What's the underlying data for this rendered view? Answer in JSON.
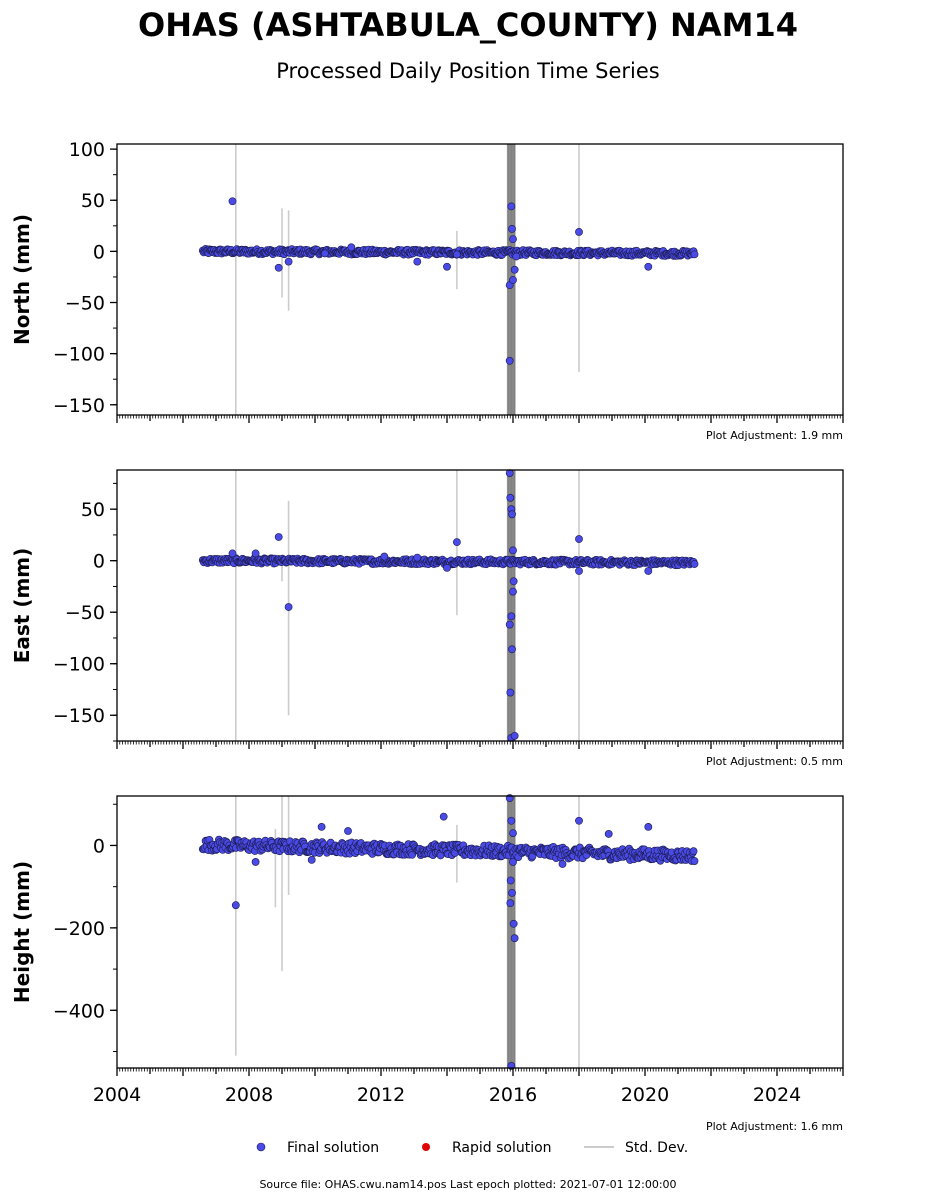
{
  "title": "OHAS (ASHTABULA_COUNTY) NAM14",
  "subtitle": "Processed Daily Position Time Series",
  "footer": "Source file: OHAS.cwu.nam14.pos  Last epoch plotted: 2021-07-01 12:00:00",
  "legend": [
    {
      "label": "Final solution",
      "color": "#4a4ae6",
      "marker": "circle"
    },
    {
      "label": "Rapid solution",
      "color": "#e00000",
      "marker": "circle"
    },
    {
      "label": "Std. Dev.",
      "color": "#cccccc",
      "marker": "line"
    }
  ],
  "colors": {
    "final": "#4a4ae6",
    "final_edge": "#1a1a4a",
    "stddev": "#cccccc",
    "stddev_dark": "#555555"
  },
  "chart_data": [
    {
      "type": "scatter",
      "ylabel": "North (mm)",
      "adjustment": "Plot Adjustment: 1.9 mm",
      "xlim": [
        2004,
        2026
      ],
      "ylim": [
        -160,
        105
      ],
      "yticks": [
        100,
        50,
        0,
        -50,
        -100,
        -150
      ],
      "xticks": [],
      "grid": false,
      "series": [
        {
          "name": "Final solution",
          "points": [
            [
              2007.5,
              49
            ],
            [
              2008.9,
              -16
            ],
            [
              2009.2,
              -10
            ],
            [
              2010.3,
              -2
            ],
            [
              2011.1,
              4
            ],
            [
              2013.1,
              -10
            ],
            [
              2014.0,
              -15
            ],
            [
              2014.3,
              -3
            ],
            [
              2015.9,
              -107
            ],
            [
              2015.95,
              44
            ],
            [
              2015.97,
              22
            ],
            [
              2015.9,
              -33
            ],
            [
              2016.0,
              12
            ],
            [
              2016.05,
              -18
            ],
            [
              2016.0,
              -28
            ],
            [
              2016.1,
              -5
            ],
            [
              2018.0,
              19
            ],
            [
              2020.1,
              -15
            ]
          ],
          "trend": {
            "start": 2006.6,
            "end": 2021.5,
            "y_start": 0,
            "y_end": -2,
            "spread": 2.5
          }
        }
      ],
      "stddev_bars": [
        [
          2007.6,
          -160,
          105
        ],
        [
          2009.0,
          -45,
          42
        ],
        [
          2009.2,
          -58,
          40
        ],
        [
          2014.3,
          -37,
          20
        ],
        [
          2018.0,
          -118,
          105
        ]
      ],
      "dense_stddev_at": 2015.95
    },
    {
      "type": "scatter",
      "ylabel": "East (mm)",
      "adjustment": "Plot Adjustment: 0.5 mm",
      "xlim": [
        2004,
        2026
      ],
      "ylim": [
        -175,
        88
      ],
      "yticks": [
        50,
        0,
        -50,
        -100,
        -150
      ],
      "xticks": [],
      "grid": false,
      "series": [
        {
          "name": "Final solution",
          "points": [
            [
              2007.5,
              7
            ],
            [
              2008.2,
              7
            ],
            [
              2008.9,
              23
            ],
            [
              2009.2,
              -45
            ],
            [
              2012.1,
              4
            ],
            [
              2013.1,
              3
            ],
            [
              2014.0,
              -7
            ],
            [
              2014.3,
              18
            ],
            [
              2015.9,
              85
            ],
            [
              2015.92,
              61
            ],
            [
              2015.95,
              50
            ],
            [
              2015.97,
              45
            ],
            [
              2015.9,
              -62
            ],
            [
              2015.95,
              -54
            ],
            [
              2015.97,
              -86
            ],
            [
              2015.92,
              -128
            ],
            [
              2015.95,
              -172
            ],
            [
              2016.05,
              -170
            ],
            [
              2016.0,
              10
            ],
            [
              2016.0,
              -30
            ],
            [
              2016.02,
              -20
            ],
            [
              2018.0,
              21
            ],
            [
              2018.0,
              -10
            ],
            [
              2020.1,
              -10
            ]
          ],
          "trend": {
            "start": 2006.6,
            "end": 2021.5,
            "y_start": 0,
            "y_end": -2,
            "spread": 2.5
          }
        }
      ],
      "stddev_bars": [
        [
          2007.6,
          -175,
          88
        ],
        [
          2009.2,
          -150,
          58
        ],
        [
          2009.0,
          -20,
          0
        ],
        [
          2014.3,
          -53,
          88
        ],
        [
          2018.0,
          -175,
          88
        ]
      ],
      "dense_stddev_at": 2015.95
    },
    {
      "type": "scatter",
      "ylabel": "Height (mm)",
      "adjustment": "Plot Adjustment: 1.6 mm",
      "xlim": [
        2004,
        2026
      ],
      "ylim": [
        -540,
        120
      ],
      "yticks": [
        0,
        -200,
        -400
      ],
      "xticks": [
        "2004",
        "2008",
        "2012",
        "2016",
        "2020",
        "2024"
      ],
      "grid": false,
      "series": [
        {
          "name": "Final solution",
          "points": [
            [
              2007.6,
              -145
            ],
            [
              2008.2,
              -40
            ],
            [
              2009.9,
              -35
            ],
            [
              2010.2,
              45
            ],
            [
              2011.0,
              35
            ],
            [
              2013.9,
              70
            ],
            [
              2015.9,
              115
            ],
            [
              2015.95,
              60
            ],
            [
              2015.93,
              -85
            ],
            [
              2015.97,
              -115
            ],
            [
              2015.92,
              -140
            ],
            [
              2016.02,
              -190
            ],
            [
              2016.05,
              -225
            ],
            [
              2015.95,
              -535
            ],
            [
              2016.0,
              -40
            ],
            [
              2016.0,
              30
            ],
            [
              2017.5,
              -45
            ],
            [
              2018.0,
              60
            ],
            [
              2018.9,
              28
            ],
            [
              2020.1,
              45
            ]
          ],
          "trend": {
            "start": 2006.6,
            "end": 2021.5,
            "y_start": 2,
            "y_end": -25,
            "spread": 14
          }
        }
      ],
      "stddev_bars": [
        [
          2007.6,
          -510,
          120
        ],
        [
          2008.8,
          -150,
          40
        ],
        [
          2009.0,
          -305,
          120
        ],
        [
          2009.2,
          -120,
          120
        ],
        [
          2014.3,
          -90,
          50
        ],
        [
          2018.0,
          -540,
          120
        ]
      ],
      "dense_stddev_at": 2015.95
    }
  ]
}
